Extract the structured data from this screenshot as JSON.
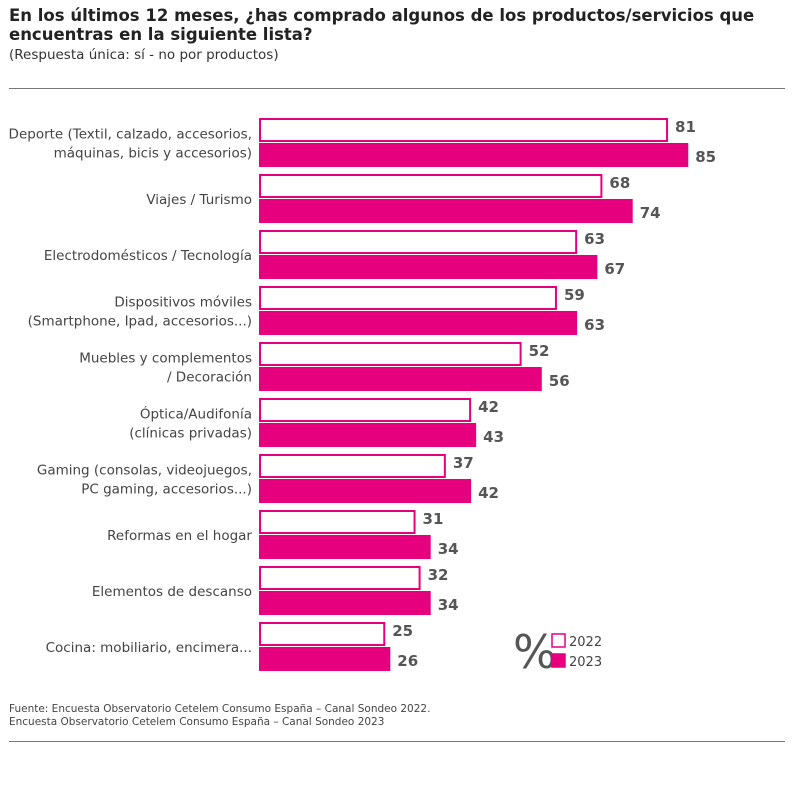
{
  "title": "En los últimos 12 meses, ¿has comprado algunos de los productos/servicios que encuentras en la siguiente lista?",
  "subtitle": "(Respuesta única: sí - no por productos)",
  "footer": [
    "Fuente: Encuesta Observatorio Cetelem Consumo España – Canal Sondeo 2022.",
    "Encuesta Observatorio Cetelem Consumo España – Canal Sondeo 2023"
  ],
  "chart_data": {
    "type": "bar",
    "orientation": "horizontal",
    "unit_label": "%",
    "categories": [
      [
        "Deporte (Textil, calzado, accesorios,",
        "máquinas, bicis y accesorios)"
      ],
      [
        "Viajes / Turismo"
      ],
      [
        "Electrodomésticos / Tecnología"
      ],
      [
        "Dispositivos móviles",
        "(Smartphone, Ipad, accesorios...)"
      ],
      [
        "Muebles y complementos",
        "/ Decoración"
      ],
      [
        "Óptica/Audifonía",
        "(clínicas privadas)"
      ],
      [
        "Gaming (consolas, videojuegos,",
        "PC gaming, accesorios...)"
      ],
      [
        "Reformas en el hogar"
      ],
      [
        "Elementos de descanso"
      ],
      [
        "Cocina: mobiliario, encimera..."
      ]
    ],
    "series": [
      {
        "name": "2022",
        "values": [
          81,
          68,
          63,
          59,
          52,
          42,
          37,
          31,
          32,
          25
        ],
        "color": "#ffffff",
        "stroke": "#e6007e"
      },
      {
        "name": "2023",
        "values": [
          85,
          74,
          67,
          63,
          56,
          43,
          42,
          34,
          34,
          26
        ],
        "color": "#e6007e",
        "stroke": "#e6007e"
      }
    ],
    "legend_position": "bottom-right",
    "grid": false
  }
}
